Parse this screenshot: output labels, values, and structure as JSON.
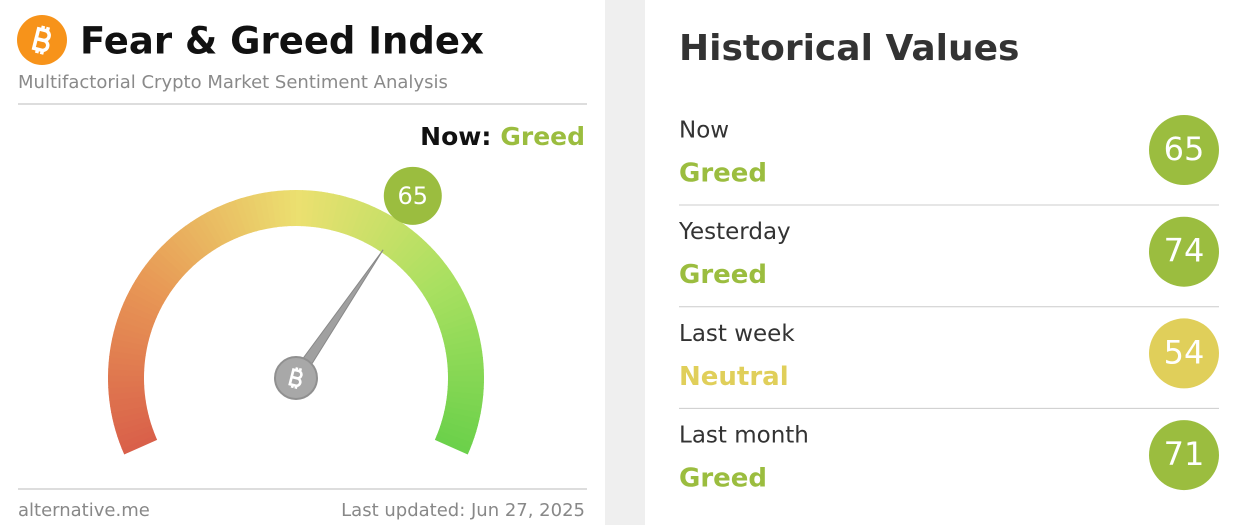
{
  "header": {
    "title": "Fear & Greed Index",
    "subtitle": "Multifactorial Crypto Market Sentiment Analysis"
  },
  "now": {
    "label": "Now:",
    "classification": "Greed",
    "color": "#9bbd3f"
  },
  "gauge": {
    "value": 65,
    "min": 0,
    "max": 100,
    "color": "#9bbd3f"
  },
  "footer": {
    "source": "alternative.me",
    "updated": "Last updated: Jun 27, 2025"
  },
  "history": {
    "title": "Historical Values",
    "rows": [
      {
        "label": "Now",
        "classification": "Greed",
        "value": 65,
        "color": "#9bbd3f"
      },
      {
        "label": "Yesterday",
        "classification": "Greed",
        "value": 74,
        "color": "#9bbd3f"
      },
      {
        "label": "Last week",
        "classification": "Neutral",
        "value": 54,
        "color": "#e0cf5a"
      },
      {
        "label": "Last month",
        "classification": "Greed",
        "value": 71,
        "color": "#9bbd3f"
      }
    ]
  }
}
